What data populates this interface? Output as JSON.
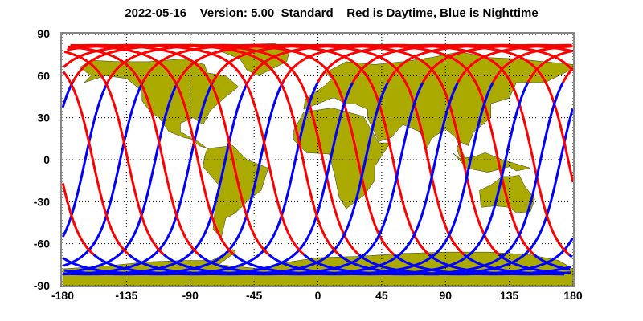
{
  "title": "2022-05-16    Version: 5.00  Standard    Red is Daytime, Blue is Nighttime",
  "chart_data": {
    "type": "map",
    "title": "2022-05-16    Version: 5.00  Standard    Red is Daytime, Blue is Nighttime",
    "xlim": [
      -180,
      180
    ],
    "ylim": [
      -90,
      90
    ],
    "x_ticks": [
      "-180",
      "-135",
      "-90",
      "-45",
      "0",
      "45",
      "90",
      "135",
      "180"
    ],
    "y_ticks": [
      "90",
      "60",
      "30",
      "0",
      "-30",
      "-60",
      "-90"
    ],
    "grid": true,
    "series": [
      {
        "name": "Daytime",
        "color": "#ff0000"
      },
      {
        "name": "Nighttime",
        "color": "#0000ff"
      }
    ],
    "land_color": "#aaaa00"
  }
}
